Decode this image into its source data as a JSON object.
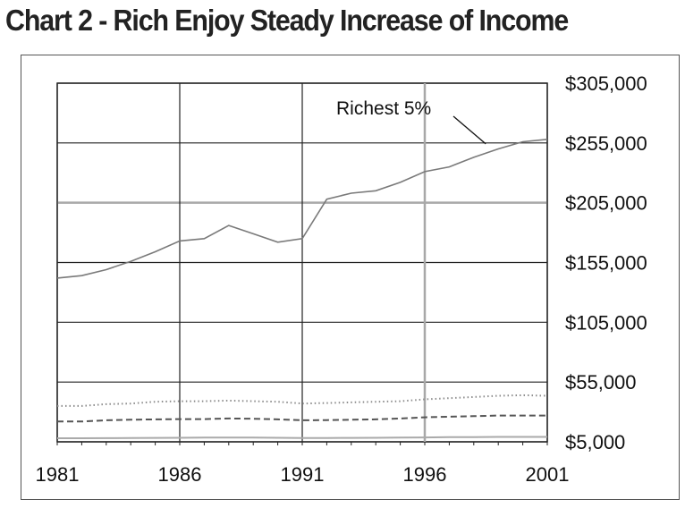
{
  "chart_data": {
    "type": "line",
    "title": "Chart 2 - Rich Enjoy Steady Increase of Income",
    "xlabel": "",
    "ylabel": "",
    "xlim": [
      1981,
      2001
    ],
    "ylim": [
      5000,
      305000
    ],
    "x_ticks": [
      "1981",
      "1986",
      "1991",
      "1996",
      "2001"
    ],
    "y_ticks": [
      "$305,000",
      "$255,000",
      "$205,000",
      "$155,000",
      "$105,000",
      "$55,000",
      "$5,000"
    ],
    "x": [
      1981,
      1982,
      1983,
      1984,
      1985,
      1986,
      1987,
      1988,
      1989,
      1990,
      1991,
      1992,
      1993,
      1994,
      1995,
      1996,
      1997,
      1998,
      1999,
      2000,
      2001
    ],
    "series": [
      {
        "name": "Richest 5%",
        "style": "solid",
        "color": "#7a7a7a",
        "values": [
          142000,
          144000,
          149000,
          156000,
          164000,
          173000,
          175000,
          186000,
          179000,
          172000,
          175000,
          208000,
          213000,
          215000,
          222000,
          231000,
          235000,
          243000,
          250000,
          256000,
          258000
        ]
      },
      {
        "style": "dotted",
        "color": "#8c8c8c",
        "values": [
          35000,
          35000,
          36500,
          37000,
          38500,
          39000,
          39000,
          39500,
          39000,
          38500,
          37000,
          37500,
          38000,
          38500,
          39000,
          40500,
          41500,
          42500,
          43500,
          44000,
          43500
        ]
      },
      {
        "style": "dashed",
        "color": "#555555",
        "values": [
          22000,
          22000,
          23000,
          23500,
          23800,
          24000,
          24000,
          24500,
          24300,
          23800,
          23000,
          23200,
          23500,
          23800,
          24500,
          25500,
          26000,
          26500,
          27000,
          27000,
          27000
        ]
      },
      {
        "style": "solid",
        "color": "#aaaaaa",
        "values": [
          8000,
          8000,
          8100,
          8200,
          8300,
          8400,
          8500,
          8600,
          8500,
          8400,
          8200,
          8200,
          8300,
          8400,
          8500,
          8700,
          8900,
          9000,
          9100,
          9100,
          9100
        ]
      }
    ],
    "annotations": [
      {
        "text": "Richest 5%",
        "x": 1999,
        "y": 255000
      }
    ],
    "grid": true,
    "highlight_lines": {
      "x": 1996,
      "y": 205000
    },
    "legend": "none"
  }
}
